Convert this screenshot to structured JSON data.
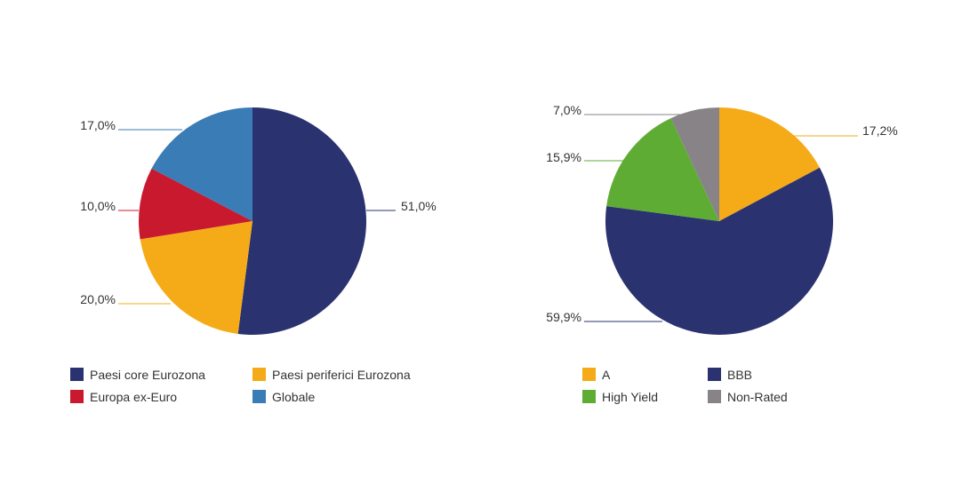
{
  "chart_data": [
    {
      "type": "pie",
      "title": "",
      "start_angle_deg": 0,
      "direction": "clockwise",
      "slices": [
        {
          "name": "Paesi core Eurozona",
          "value": 51.0,
          "label": "51,0%",
          "color": "#2b3270"
        },
        {
          "name": "Paesi periferici Eurozona",
          "value": 20.0,
          "label": "20,0%",
          "color": "#f5ab17"
        },
        {
          "name": "Europa ex-Euro",
          "value": 10.0,
          "label": "10,0%",
          "color": "#c8192f"
        },
        {
          "name": "Globale",
          "value": 17.0,
          "label": "17,0%",
          "color": "#3a7cb6"
        }
      ],
      "legend": {
        "placement": "bottom",
        "order": [
          "Paesi core Eurozona",
          "Paesi periferici Eurozona",
          "Europa ex-Euro",
          "Globale"
        ]
      }
    },
    {
      "type": "pie",
      "title": "",
      "start_angle_deg": 0,
      "direction": "clockwise",
      "slices": [
        {
          "name": "A",
          "value": 17.2,
          "label": "17,2%",
          "color": "#f5ab17"
        },
        {
          "name": "BBB",
          "value": 59.9,
          "label": "59,9%",
          "color": "#2b3270"
        },
        {
          "name": "High Yield",
          "value": 15.9,
          "label": "15,9%",
          "color": "#5fac35"
        },
        {
          "name": "Non-Rated",
          "value": 7.0,
          "label": "7,0%",
          "color": "#878386"
        }
      ],
      "legend": {
        "placement": "bottom",
        "order": [
          "A",
          "BBB",
          "High Yield",
          "Non-Rated"
        ]
      }
    }
  ]
}
